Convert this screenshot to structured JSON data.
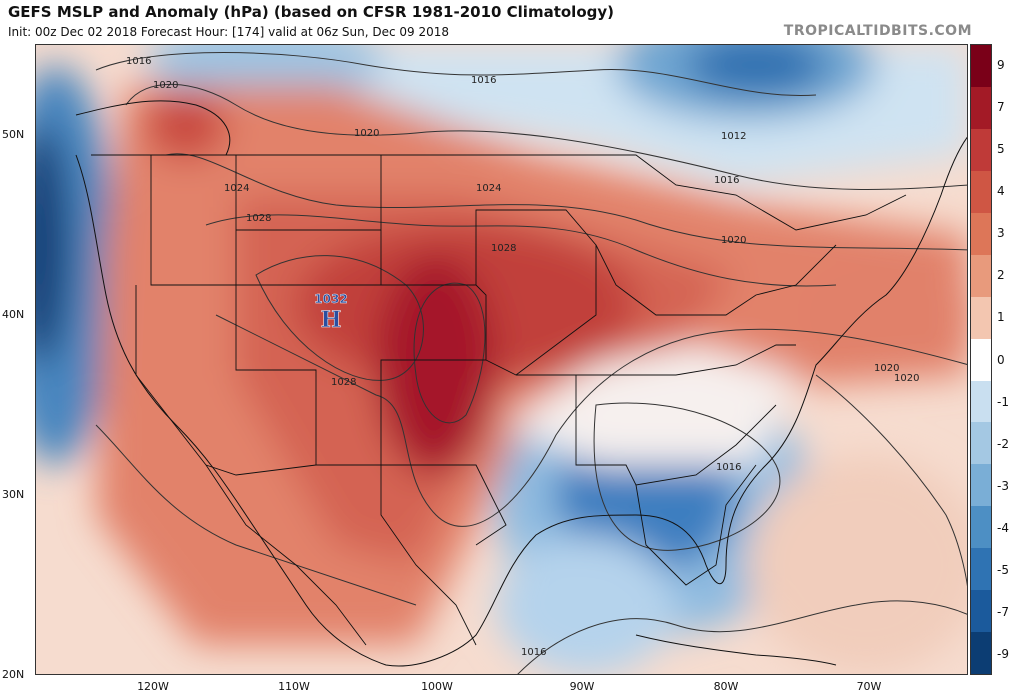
{
  "header": {
    "title": "GEFS MSLP and Anomaly (hPa) (based on CFSR 1981-2010 Climatology)",
    "subtitle": "Init: 00z Dec 02 2018   Forecast Hour: [174]   valid at 06z Sun, Dec 09 2018",
    "brand": "TROPICALTIDBITS.COM"
  },
  "axes": {
    "lat_labels": [
      "50N",
      "40N",
      "30N",
      "20N"
    ],
    "lon_labels": [
      "120W",
      "110W",
      "100W",
      "90W",
      "80W",
      "70W"
    ]
  },
  "colorbar": {
    "labels": [
      "9",
      "7",
      "5",
      "4",
      "3",
      "2",
      "1",
      "0",
      "-1",
      "-2",
      "-3",
      "-4",
      "-5",
      "-7",
      "-9"
    ],
    "colors": [
      "#7a0018",
      "#a31a26",
      "#bf3a38",
      "#cf5644",
      "#dd7658",
      "#e89a7c",
      "#f3c6b0",
      "#ffffff",
      "#c9dff0",
      "#a4c8e3",
      "#7aaed6",
      "#4d8fc4",
      "#2f73b3",
      "#1b5a9c",
      "#0c3d73"
    ]
  },
  "map_labels": {
    "isobars": [
      "1016",
      "1020",
      "1016",
      "1020",
      "1024",
      "1028",
      "1024",
      "1028",
      "1012",
      "1016",
      "1020",
      "1028",
      "1020",
      "1020",
      "1016",
      "1016"
    ],
    "high_value": "1032",
    "high_letter": "H"
  }
}
